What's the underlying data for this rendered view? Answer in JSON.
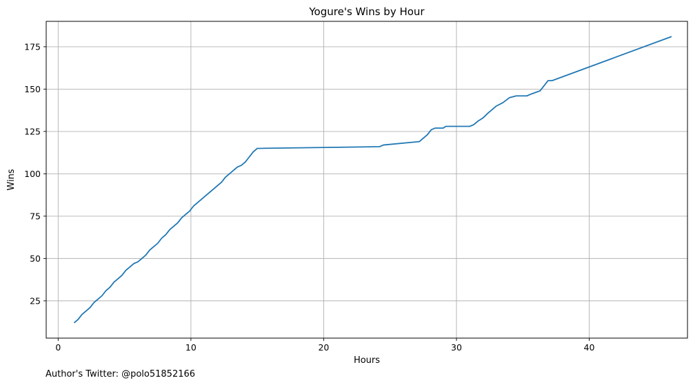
{
  "chart_data": {
    "type": "line",
    "title": "Yogure's Wins by Hour",
    "xlabel": "Hours",
    "ylabel": "Wins",
    "xlim": [
      -0.9,
      47.4
    ],
    "ylim": [
      3,
      190
    ],
    "xticks": [
      0,
      10,
      20,
      30,
      40
    ],
    "yticks": [
      25,
      50,
      75,
      100,
      125,
      150,
      175
    ],
    "grid": true,
    "line_color": "#1f77b4",
    "grid_color": "#b0b0b0",
    "series": [
      {
        "x": [
          1.2,
          1.5,
          1.8,
          2.1,
          2.4,
          2.7,
          3.0,
          3.3,
          3.6,
          3.9,
          4.2,
          4.5,
          4.8,
          5.1,
          5.4,
          5.7,
          6.0,
          6.3,
          6.6,
          6.9,
          7.2,
          7.5,
          7.8,
          8.1,
          8.4,
          8.7,
          9.0,
          9.3,
          9.6,
          9.9,
          10.2,
          10.5,
          10.8,
          11.1,
          11.4,
          11.7,
          12.0,
          12.3,
          12.6,
          12.9,
          13.2,
          13.5,
          13.8,
          14.1,
          14.3,
          14.5,
          14.7,
          15.0,
          24.2,
          24.5,
          27.2,
          27.5,
          27.8,
          28.1,
          28.4,
          28.7,
          29.0,
          29.2,
          29.5,
          31.0,
          31.3,
          31.6,
          32.0,
          32.4,
          32.7,
          33.0,
          33.5,
          34.0,
          34.5,
          35.0,
          35.3,
          35.6,
          36.3,
          36.6,
          36.9,
          37.2,
          46.2
        ],
        "y": [
          12,
          14,
          17,
          19,
          21,
          24,
          26,
          28,
          31,
          33,
          36,
          38,
          40,
          43,
          45,
          47,
          48,
          50,
          52,
          55,
          57,
          59,
          62,
          64,
          67,
          69,
          71,
          74,
          76,
          78,
          81,
          83,
          85,
          87,
          89,
          91,
          93,
          95,
          98,
          100,
          102,
          104,
          105,
          107,
          109,
          111,
          113,
          115,
          116,
          117,
          119,
          121,
          123,
          126,
          127,
          127,
          127,
          128,
          128,
          128,
          129,
          131,
          133,
          136,
          138,
          140,
          142,
          145,
          146,
          146,
          146,
          147,
          149,
          152,
          155,
          155,
          181
        ]
      }
    ]
  },
  "footer": {
    "credit": "Author's Twitter: @polo51852166"
  }
}
